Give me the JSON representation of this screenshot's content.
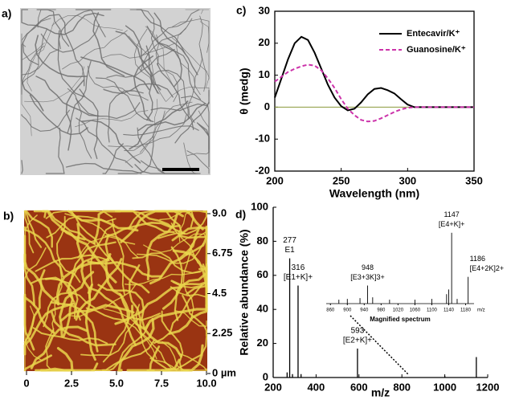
{
  "panel_labels": [
    "a)",
    "b)",
    "c)",
    "d)"
  ],
  "afm": {
    "xlim": [
      0,
      10
    ],
    "xticks": [
      0,
      2.5,
      {
        "value": 5,
        "label": "5.0"
      },
      7.5,
      {
        "value": 10,
        "label": "10.0"
      }
    ],
    "ylim": [
      0,
      9
    ],
    "yticks": [
      {
        "value": 9,
        "label": "9.0"
      },
      6.75,
      4.5,
      2.25,
      {
        "value": 0,
        "label": "0 µm"
      }
    ]
  },
  "chart_data": [
    {
      "type": "line",
      "xlabel": "Wavelength (nm)",
      "ylabel": "θ (medg)",
      "xlim": [
        200,
        350
      ],
      "xticks": [
        200,
        250,
        300,
        350
      ],
      "ylim": [
        -20,
        30
      ],
      "yticks": [
        -20,
        -10,
        0,
        10,
        20,
        30
      ],
      "zero_line": true,
      "legend": "upper right",
      "x": [
        200,
        205,
        210,
        215,
        220,
        225,
        230,
        235,
        240,
        245,
        250,
        255,
        260,
        265,
        270,
        275,
        280,
        285,
        290,
        295,
        300,
        305,
        310,
        320,
        330,
        340,
        350
      ],
      "series": [
        {
          "name": "Entecavir/K⁺",
          "color": "#000000",
          "dash": false,
          "values": [
            3,
            9,
            15,
            20,
            22,
            21,
            17,
            12,
            7,
            3,
            0.3,
            -1,
            -0.5,
            1.5,
            4,
            5.7,
            6,
            5.3,
            4.3,
            2.5,
            0.8,
            0,
            0,
            0,
            0,
            0,
            0
          ]
        },
        {
          "name": "Guanosine/K⁺",
          "color": "#cc33aa",
          "dash": true,
          "values": [
            8,
            9.5,
            11,
            12,
            12.8,
            13.3,
            13,
            11.5,
            9,
            6,
            2.5,
            -0.5,
            -2.5,
            -4,
            -4.5,
            -4.3,
            -3.5,
            -2.5,
            -1.5,
            -0.7,
            -0.2,
            0,
            0,
            0,
            0,
            0,
            0
          ]
        }
      ]
    },
    {
      "type": "stem",
      "xlabel": "m/z",
      "ylabel": "Relative abundance (%)",
      "color": "#000000",
      "xlim": [
        200,
        1200
      ],
      "xticks": [
        200,
        400,
        600,
        800,
        1000,
        1200
      ],
      "ylim": [
        0,
        100
      ],
      "yticks": [
        0,
        20,
        40,
        60,
        80,
        100
      ],
      "x": [
        265,
        277,
        290,
        316,
        330,
        593,
        1000,
        1147
      ],
      "values": [
        3,
        70,
        2,
        54,
        2,
        17,
        1,
        12
      ],
      "annotations": [
        {
          "at": 277,
          "lines": [
            "277",
            "E1"
          ]
        },
        {
          "at": 316,
          "lines": [
            "316",
            "[E1+K]+"
          ]
        },
        {
          "at": 593,
          "lines": [
            "593",
            "[E2+K]+"
          ]
        }
      ]
    },
    {
      "type": "stem",
      "title": "Magnified spectrum",
      "xlabel": "m/z",
      "color": "#000000",
      "xlim": [
        850,
        1200
      ],
      "xticks": [
        860,
        900,
        940,
        980,
        1020,
        1060,
        1100,
        1140,
        1180
      ],
      "ylim": [
        0,
        100
      ],
      "x": [
        880,
        900,
        930,
        948,
        960,
        1000,
        1060,
        1100,
        1135,
        1140,
        1147,
        1160,
        1186
      ],
      "values": [
        5,
        6,
        7,
        23,
        8,
        5,
        5,
        6,
        12,
        18,
        90,
        6,
        34
      ],
      "annotations": [
        {
          "at": 948,
          "lines": [
            "948",
            "[E3+3K]3+"
          ]
        },
        {
          "at": 1147,
          "lines": [
            "1147",
            "[E4+K]+"
          ]
        },
        {
          "at": 1186,
          "lines": [
            "1186",
            "[E4+2K]2+"
          ]
        }
      ]
    }
  ]
}
